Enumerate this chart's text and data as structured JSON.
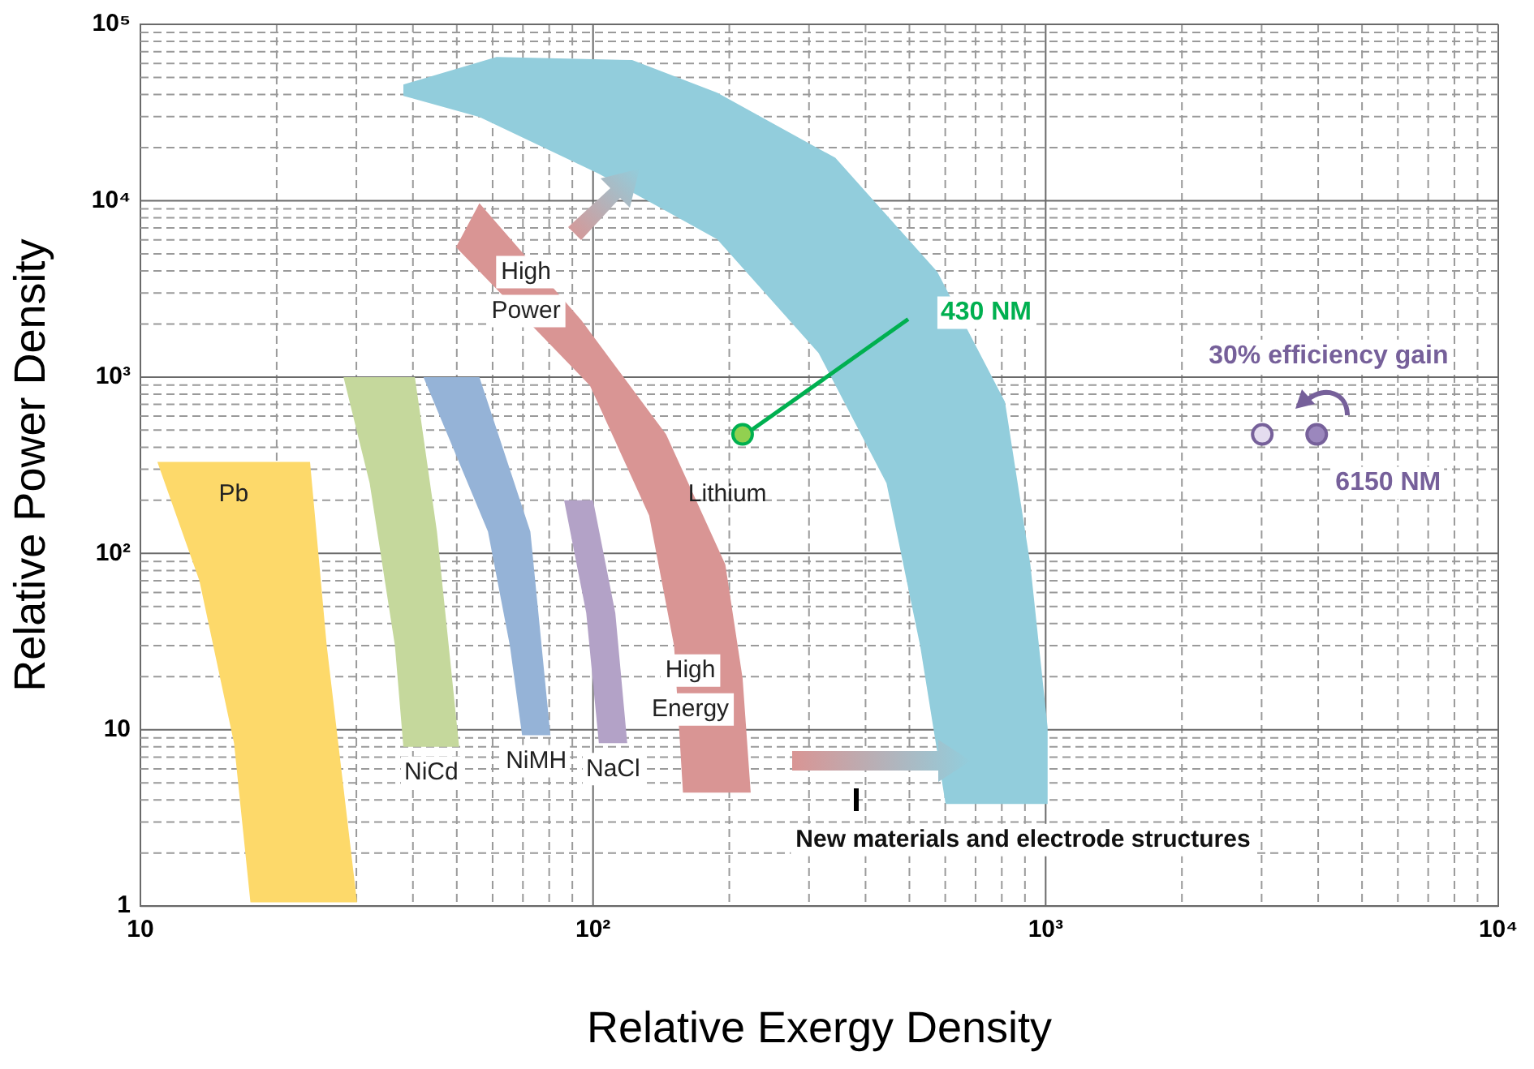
{
  "chart_data": {
    "type": "area",
    "xlabel": "Relative Exergy Density",
    "ylabel": "Relative Power Density",
    "log": "xy",
    "grid": true,
    "xlim": [
      10,
      10000
    ],
    "xticks": [
      {
        "value": 10,
        "label": "10"
      },
      {
        "value": 20,
        "label": null
      },
      {
        "value": 30,
        "label": null
      },
      {
        "value": 40,
        "label": null
      },
      {
        "value": 50,
        "label": null
      },
      {
        "value": 60,
        "label": null
      },
      {
        "value": 70,
        "label": null
      },
      {
        "value": 80,
        "label": null
      },
      {
        "value": 90,
        "label": null
      },
      {
        "value": 100,
        "label": "10²"
      },
      {
        "value": 200,
        "label": null
      },
      {
        "value": 300,
        "label": null
      },
      {
        "value": 400,
        "label": null
      },
      {
        "value": 500,
        "label": null
      },
      {
        "value": 600,
        "label": null
      },
      {
        "value": 700,
        "label": null
      },
      {
        "value": 800,
        "label": null
      },
      {
        "value": 900,
        "label": null
      },
      {
        "value": 1000,
        "label": "10³"
      },
      {
        "value": 2000,
        "label": null
      },
      {
        "value": 3000,
        "label": null
      },
      {
        "value": 4000,
        "label": null
      },
      {
        "value": 5000,
        "label": null
      },
      {
        "value": 6000,
        "label": null
      },
      {
        "value": 7000,
        "label": null
      },
      {
        "value": 8000,
        "label": null
      },
      {
        "value": 9000,
        "label": null
      },
      {
        "value": 10000,
        "label": "10⁴"
      }
    ],
    "ylim": [
      1,
      100000
    ],
    "yticks": [
      {
        "value": 1,
        "label": "1"
      },
      {
        "value": 2,
        "label": null
      },
      {
        "value": 3,
        "label": null
      },
      {
        "value": 4,
        "label": null
      },
      {
        "value": 5,
        "label": null
      },
      {
        "value": 6,
        "label": null
      },
      {
        "value": 7,
        "label": null
      },
      {
        "value": 8,
        "label": null
      },
      {
        "value": 9,
        "label": null
      },
      {
        "value": 10,
        "label": "10"
      },
      {
        "value": 20,
        "label": null
      },
      {
        "value": 30,
        "label": null
      },
      {
        "value": 40,
        "label": null
      },
      {
        "value": 50,
        "label": null
      },
      {
        "value": 60,
        "label": null
      },
      {
        "value": 70,
        "label": null
      },
      {
        "value": 80,
        "label": null
      },
      {
        "value": 90,
        "label": null
      },
      {
        "value": 100,
        "label": "10²"
      },
      {
        "value": 200,
        "label": null
      },
      {
        "value": 300,
        "label": null
      },
      {
        "value": 400,
        "label": null
      },
      {
        "value": 500,
        "label": null
      },
      {
        "value": 600,
        "label": null
      },
      {
        "value": 700,
        "label": null
      },
      {
        "value": 800,
        "label": null
      },
      {
        "value": 900,
        "label": null
      },
      {
        "value": 1000,
        "label": "10³"
      },
      {
        "value": 2000,
        "label": null
      },
      {
        "value": 3000,
        "label": null
      },
      {
        "value": 4000,
        "label": null
      },
      {
        "value": 5000,
        "label": null
      },
      {
        "value": 6000,
        "label": null
      },
      {
        "value": 7000,
        "label": null
      },
      {
        "value": 8000,
        "label": null
      },
      {
        "value": 9000,
        "label": null
      },
      {
        "value": 10000,
        "label": "10⁴"
      },
      {
        "value": 20000,
        "label": null
      },
      {
        "value": 30000,
        "label": null
      },
      {
        "value": 40000,
        "label": null
      },
      {
        "value": 50000,
        "label": null
      },
      {
        "value": 60000,
        "label": null
      },
      {
        "value": 70000,
        "label": null
      },
      {
        "value": 80000,
        "label": null
      },
      {
        "value": 90000,
        "label": null
      },
      {
        "value": 100000,
        "label": "10⁵"
      }
    ],
    "series": [
      {
        "name": "Pb",
        "color": "#fdd96a",
        "x": [
          10.9,
          23.7,
          25.8,
          30.1,
          17.5,
          16.1,
          13.5
        ],
        "values": [
          330,
          330,
          30,
          1.05,
          1.05,
          8.4,
          70
        ]
      },
      {
        "name": "NiCd",
        "color": "#c5d89c",
        "x": [
          28.1,
          40.4,
          45.2,
          50.6,
          38.1,
          36.5,
          32.1
        ],
        "values": [
          1000,
          1000,
          133,
          8,
          8,
          30,
          250
        ]
      },
      {
        "name": "NiMH",
        "color": "#95b3d7",
        "x": [
          42.2,
          56.1,
          72.7,
          80.5,
          69.7,
          65.5,
          58.6
        ],
        "values": [
          1000,
          1000,
          133,
          9.3,
          9.3,
          30,
          133
        ]
      },
      {
        "name": "NaCl",
        "color": "#b3a2c7",
        "x": [
          86.3,
          100,
          112,
          119,
          103,
          96.6
        ],
        "values": [
          200,
          200,
          46,
          8.4,
          8.4,
          46
        ]
      },
      {
        "name": "Lithium",
        "color": "#d99594",
        "x": [
          49.8,
          56.1,
          94.2,
          145,
          196,
          214,
          223,
          158,
          151,
          133,
          98.4
        ],
        "values": [
          5450,
          9670,
          2100,
          473,
          86.5,
          19.6,
          4.4,
          4.4,
          30,
          164,
          896
        ]
      },
      {
        "color": "#92cddc",
        "x": [
          38.1,
          61.2,
          122,
          188,
          343,
          576,
          813,
          925,
          1010,
          1010,
          601,
          528,
          445,
          315,
          188,
          103,
          56.1,
          38.1
        ],
        "values": [
          45600,
          65300,
          62700,
          41000,
          17500,
          3960,
          724,
          86.5,
          10.3,
          3.8,
          3.8,
          30,
          250,
          1370,
          6050,
          14200,
          29800,
          39300
        ]
      },
      {
        "name": "430 NM",
        "type": "scatter",
        "marker": "circle",
        "color": "#00b050",
        "colors": [
          "#92d050"
        ],
        "x": [
          214
        ],
        "values": [
          473
        ]
      },
      {
        "name": "6150 NM",
        "type": "scatter",
        "marker": "circle",
        "color": "#76609a",
        "colors": [
          "#e4dcef",
          "#9b87bd"
        ],
        "x": [
          3010,
          3970
        ],
        "values": [
          473,
          473
        ]
      }
    ],
    "annotations": [
      "High\nPower",
      "High\nEnergy",
      "New materials and electrode structures",
      "30% efficiency gain"
    ]
  }
}
